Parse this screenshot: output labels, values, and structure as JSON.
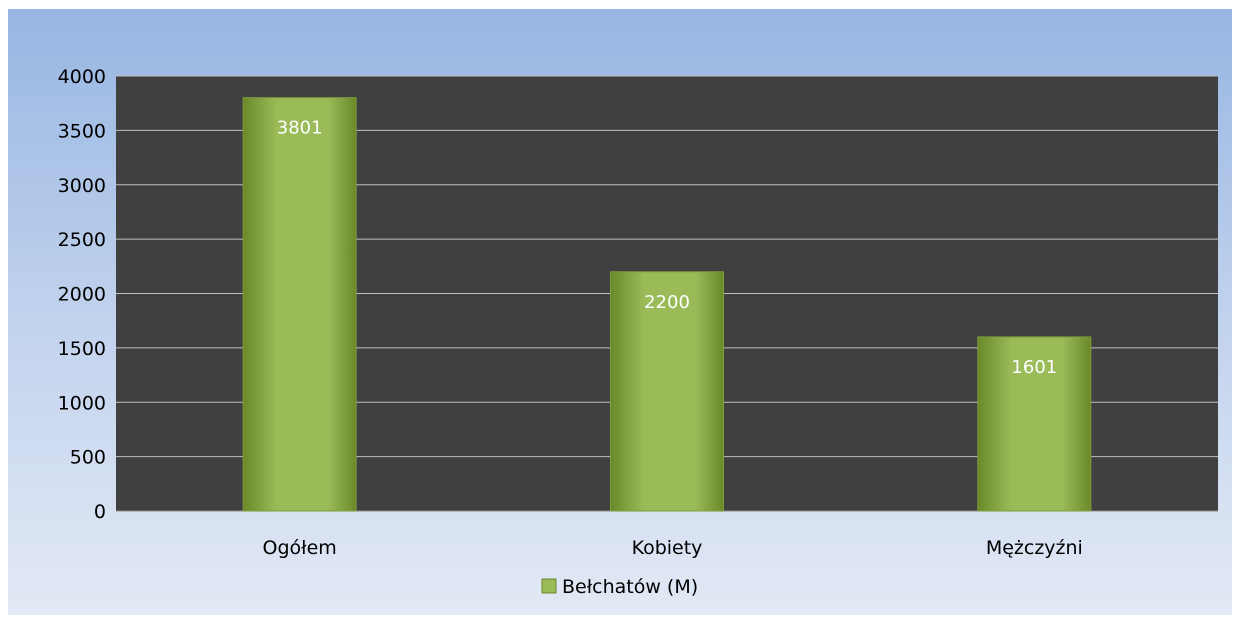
{
  "chart_data": {
    "type": "bar",
    "categories": [
      "Ogółem",
      "Kobiety",
      "Mężczyźni"
    ],
    "series": [
      {
        "name": "Bełchatów (M)",
        "values": [
          3801,
          2200,
          1601
        ]
      }
    ],
    "ylim": [
      0,
      4000
    ],
    "yticks": [
      0,
      500,
      1000,
      1500,
      2000,
      2500,
      3000,
      3500,
      4000
    ],
    "data_labels": [
      "3801",
      "2200",
      "1601"
    ],
    "grid": true,
    "legend_position": "bottom",
    "colors": {
      "plot_background": "#404040",
      "gridline": "#bfbfbf",
      "bar_light": "#9bbb59",
      "bar_dark": "#6a8a2a"
    }
  }
}
